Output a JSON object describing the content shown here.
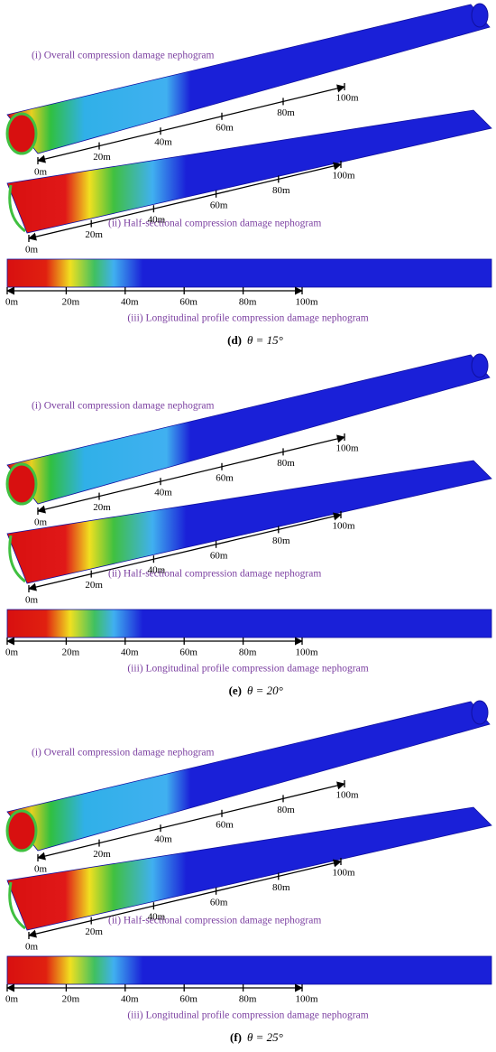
{
  "panels": [
    {
      "caption": {
        "tag": "(d)",
        "angle": "θ = 15°"
      },
      "views": [
        {
          "title": "(i) Overall compression damage nephogram",
          "ticks": [
            "0m",
            "20m",
            "40m",
            "60m",
            "80m",
            "100m"
          ]
        },
        {
          "title": "(ii) Half-sectional compression damage nephogram",
          "ticks": [
            "0m",
            "20m",
            "40m",
            "60m",
            "80m",
            "100m"
          ]
        },
        {
          "title": "(iii) Longitudinal profile compression damage nephogram",
          "ticks": [
            "0m",
            "20m",
            "40m",
            "60m",
            "80m",
            "100m"
          ]
        }
      ]
    },
    {
      "caption": {
        "tag": "(e)",
        "angle": "θ = 20°"
      },
      "views": [
        {
          "title": "(i) Overall compression damage nephogram",
          "ticks": [
            "0m",
            "20m",
            "40m",
            "60m",
            "80m",
            "100m"
          ]
        },
        {
          "title": "(ii) Half-sectional compression damage nephogram",
          "ticks": [
            "0m",
            "20m",
            "40m",
            "60m",
            "80m",
            "100m"
          ]
        },
        {
          "title": "(iii) Longitudinal profile compression damage nephogram",
          "ticks": [
            "0m",
            "20m",
            "40m",
            "60m",
            "80m",
            "100m"
          ]
        }
      ]
    },
    {
      "caption": {
        "tag": "(f)",
        "angle": "θ = 25°"
      },
      "views": [
        {
          "title": "(i) Overall compression damage nephogram",
          "ticks": [
            "0m",
            "20m",
            "40m",
            "60m",
            "80m",
            "100m"
          ]
        },
        {
          "title": "(ii) Half-sectional compression damage nephogram",
          "ticks": [
            "0m",
            "20m",
            "40m",
            "60m",
            "80m",
            "100m"
          ]
        },
        {
          "title": "(iii) Longitudinal profile compression damage nephogram",
          "ticks": [
            "0m",
            "20m",
            "40m",
            "60m",
            "80m",
            "100m"
          ]
        }
      ]
    }
  ]
}
